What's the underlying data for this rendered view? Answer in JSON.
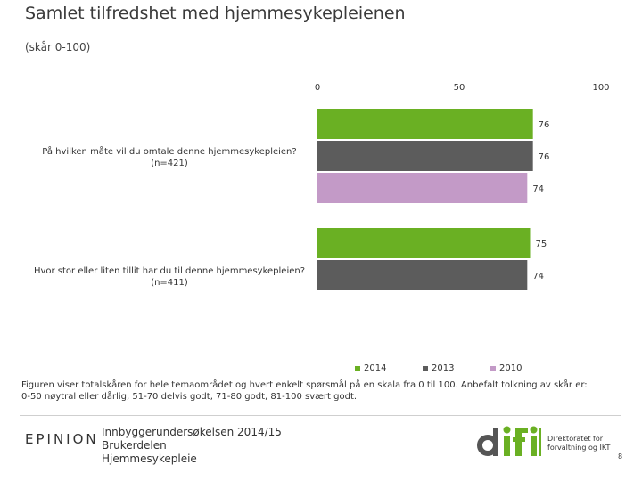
{
  "title": "Samlet tilfredshet med hjemmesykepleienen",
  "subtitle": "(skår 0-100)",
  "chart_data": {
    "type": "bar",
    "orientation": "horizontal",
    "xlim": [
      0,
      100
    ],
    "ticks": [
      "0",
      "50",
      "100"
    ],
    "grid": false,
    "legend_position": "bottom",
    "categories": [
      {
        "label": "På hvilken måte vil du omtale denne hjemmesykepleien?",
        "n": "(n=421)"
      },
      {
        "label": "Hvor stor eller liten tillit har du til denne hjemmesykepleien?",
        "n": "(n=411)"
      }
    ],
    "series": [
      {
        "name": "2014",
        "color": "#6ab023",
        "values": [
          76,
          75
        ]
      },
      {
        "name": "2013",
        "color": "#5c5c5c",
        "values": [
          76,
          74
        ]
      },
      {
        "name": "2010",
        "color": "#c39ac7",
        "values": [
          74,
          null
        ]
      }
    ]
  },
  "note": "Figuren viser totalskåren for hele temaområdet og hvert enkelt spørsmål på en skala fra 0 til 100. Anbefalt tolkning av skår er: 0-50 nøytral eller dårlig, 51-70 delvis godt, 71-80 godt, 81-100 svært godt.",
  "footer": {
    "brand": "EPINION",
    "line1": "Innbyggerundersøkelsen 2014/15",
    "line2": "Brukerdelen",
    "line3": "Hjemmesykepleie",
    "difi_line1": "Direktoratet for",
    "difi_line2": "forvaltning og IKT",
    "page": "8"
  }
}
